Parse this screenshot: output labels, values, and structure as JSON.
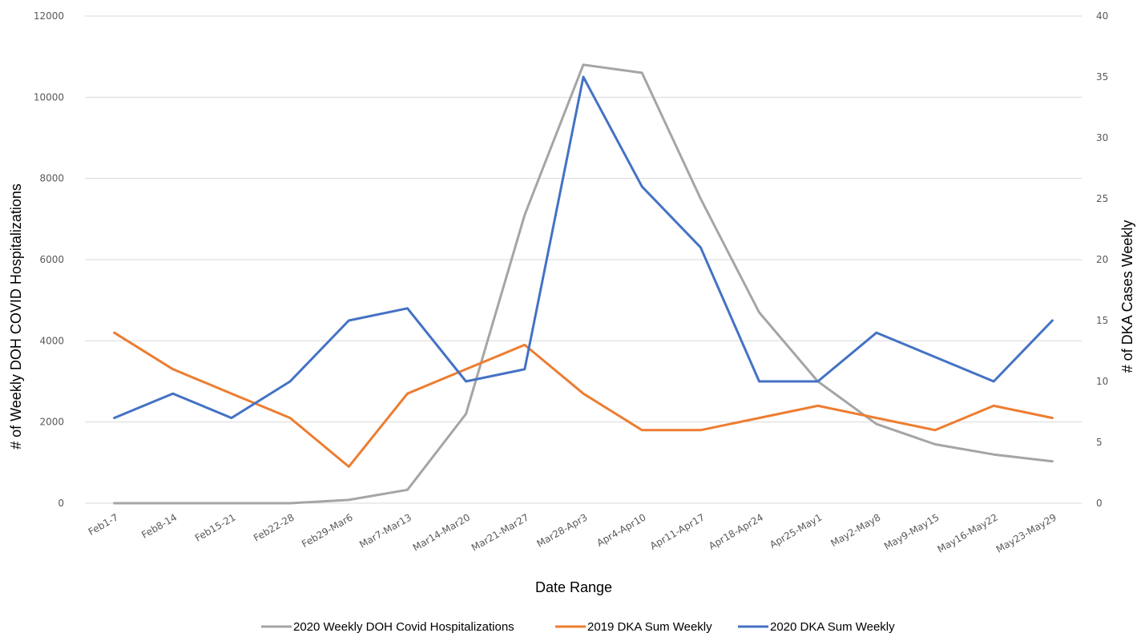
{
  "chart_data": {
    "type": "line",
    "title": "",
    "xlabel": "Date Range",
    "ylabel_left": "# of Weekly DOH COVID Hospitalizations",
    "ylabel_right": "# of DKA Cases Weekly",
    "ylim_left": [
      0,
      12000
    ],
    "ylim_right": [
      0,
      40
    ],
    "yticks_left": [
      "0",
      "2000",
      "4000",
      "6000",
      "8000",
      "10000",
      "12000"
    ],
    "yticks_right": [
      "0",
      "5",
      "10",
      "15",
      "20",
      "25",
      "30",
      "35",
      "40"
    ],
    "grid": true,
    "legend_position": "bottom",
    "categories": [
      "Feb1-7",
      "Feb8-14",
      "Feb15-21",
      "Feb22-28",
      "Feb29-Mar6",
      "Mar7-Mar13",
      "Mar14-Mar20",
      "Mar21-Mar27",
      "Mar28-Apr3",
      "Apr4-Apr10",
      "Apr11-Apr17",
      "Apr18-Apr24",
      "Apr25-May1",
      "May2-May8",
      "May9-May15",
      "May16-May22",
      "May23-May29"
    ],
    "series": [
      {
        "name": "2020 Weekly DOH Covid Hospitalizations",
        "axis": "left",
        "color": "#a5a5a5",
        "values": [
          0,
          0,
          0,
          0,
          80,
          330,
          2200,
          7100,
          10800,
          10600,
          7500,
          4700,
          3000,
          1950,
          1450,
          1200,
          1030
        ]
      },
      {
        "name": "2019 DKA Sum Weekly",
        "axis": "right",
        "color": "#ed7d31",
        "values": [
          14,
          11,
          9,
          7,
          3,
          9,
          11,
          13,
          9,
          6,
          6,
          7,
          8,
          7,
          6,
          8,
          7
        ]
      },
      {
        "name": "2020 DKA Sum Weekly",
        "axis": "right",
        "color": "#4472c4",
        "values": [
          7,
          9,
          7,
          10,
          15,
          16,
          10,
          11,
          35,
          26,
          21,
          10,
          10,
          14,
          12,
          10,
          15
        ]
      }
    ]
  }
}
